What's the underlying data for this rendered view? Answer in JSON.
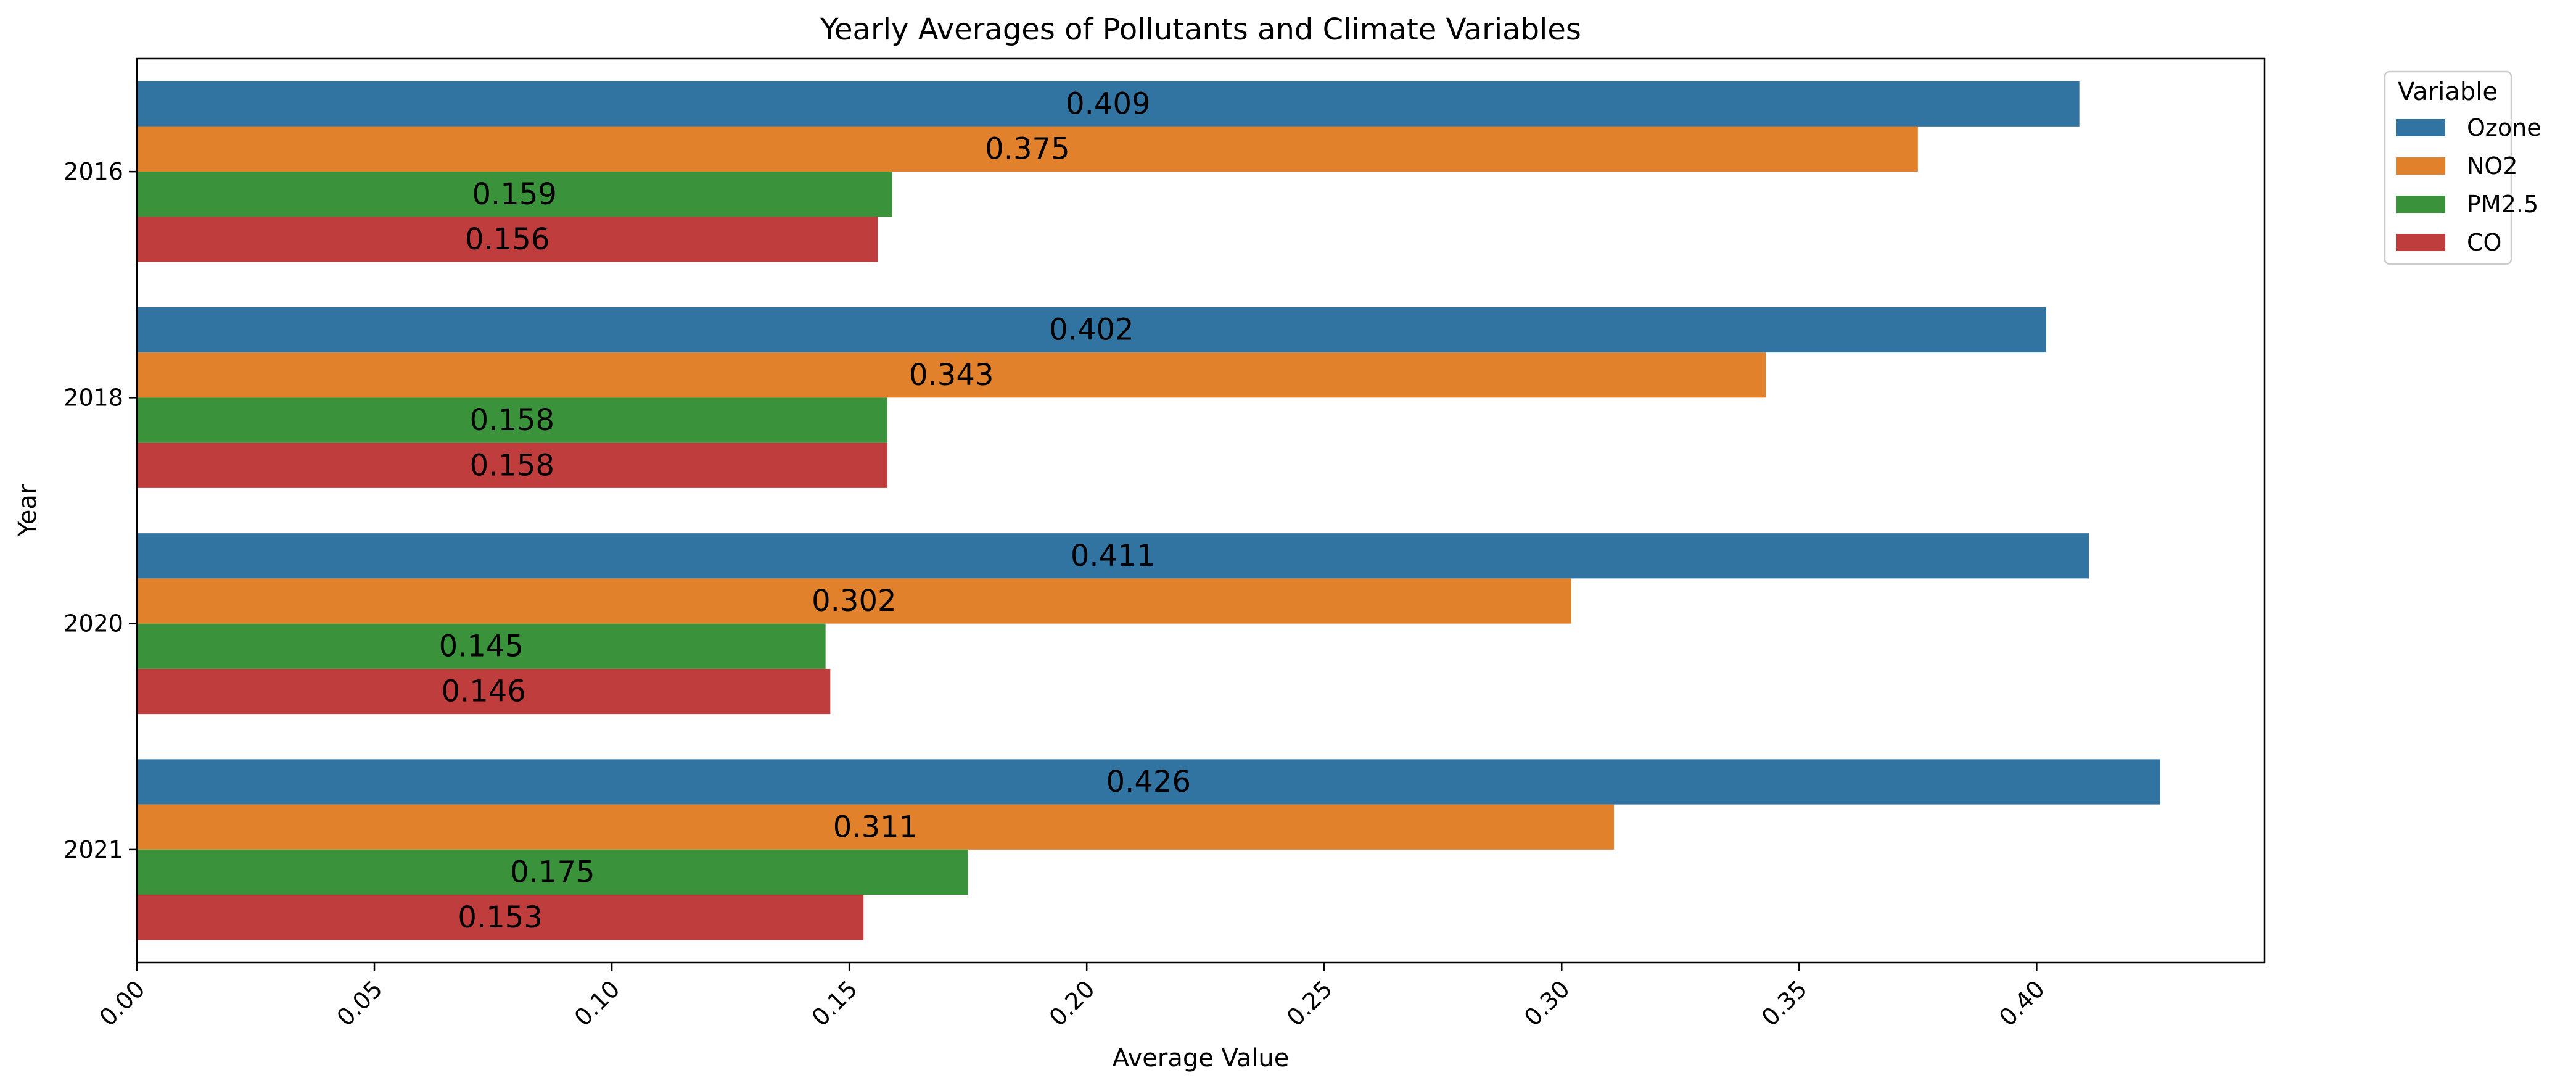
{
  "chart_data": {
    "type": "bar",
    "orientation": "horizontal",
    "title": "Yearly Averages of Pollutants and Climate Variables",
    "xlabel": "Average Value",
    "ylabel": "Year",
    "xlim": [
      0,
      0.448
    ],
    "x_ticks": [
      "0.00",
      "0.05",
      "0.10",
      "0.15",
      "0.20",
      "0.25",
      "0.30",
      "0.35",
      "0.40"
    ],
    "x_tick_values": [
      0,
      0.05,
      0.1,
      0.15,
      0.2,
      0.25,
      0.3,
      0.35,
      0.4
    ],
    "categories": [
      "2016",
      "2018",
      "2020",
      "2021"
    ],
    "grid": false,
    "legend": {
      "title": "Variable",
      "placement": "outside-top-right"
    },
    "series": [
      {
        "name": "Ozone",
        "color": "#3274a1",
        "values": [
          0.409,
          0.402,
          0.411,
          0.426
        ],
        "labels": [
          "0.409",
          "0.402",
          "0.411",
          "0.426"
        ]
      },
      {
        "name": "NO2",
        "color": "#e1812c",
        "values": [
          0.375,
          0.343,
          0.302,
          0.311
        ],
        "labels": [
          "0.375",
          "0.343",
          "0.302",
          "0.311"
        ]
      },
      {
        "name": "PM2.5",
        "color": "#3a923a",
        "values": [
          0.159,
          0.158,
          0.145,
          0.175
        ],
        "labels": [
          "0.159",
          "0.158",
          "0.145",
          "0.175"
        ]
      },
      {
        "name": "CO",
        "color": "#c03d3e",
        "values": [
          0.156,
          0.158,
          0.146,
          0.153
        ],
        "labels": [
          "0.156",
          "0.158",
          "0.146",
          "0.153"
        ]
      }
    ]
  }
}
